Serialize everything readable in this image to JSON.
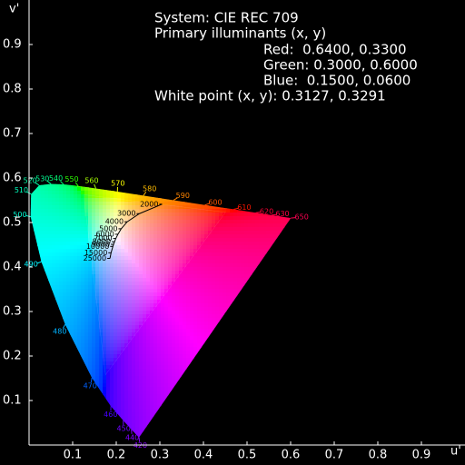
{
  "chart_data": {
    "type": "chromaticity",
    "title": "System: CIE REC 709",
    "subtitle": "Primary illuminants (x, y)",
    "primaries": [
      {
        "label": "Red:  0.6400, 0.3300",
        "x": 0.64,
        "y": 0.33
      },
      {
        "label": "Green: 0.3000, 0.6000",
        "x": 0.3,
        "y": 0.6
      },
      {
        "label": "Blue:  0.1500, 0.0600",
        "x": 0.15,
        "y": 0.06
      }
    ],
    "white_point": {
      "label": "White point (x, y): 0.3127, 0.3291",
      "x": 0.3127,
      "y": 0.3291
    },
    "xlabel": "u'",
    "ylabel": "v'",
    "xlim": [
      0,
      1.0
    ],
    "ylim": [
      0,
      1.0
    ],
    "xticks": [
      0.1,
      0.2,
      0.3,
      0.4,
      0.5,
      0.6,
      0.7,
      0.8,
      0.9
    ],
    "yticks": [
      0.1,
      0.2,
      0.3,
      0.4,
      0.5,
      0.6,
      0.7,
      0.8,
      0.9
    ],
    "spectral_locus": {
      "wavelengths": [
        420,
        440,
        450,
        460,
        470,
        480,
        490,
        500,
        510,
        520,
        530,
        540,
        550,
        560,
        570,
        580,
        590,
        600,
        610,
        620,
        630,
        650
      ],
      "x": [
        0.2522,
        0.2347,
        0.216,
        0.1877,
        0.1441,
        0.0828,
        0.0282,
        0.0035,
        0.0046,
        0.0231,
        0.0501,
        0.0792,
        0.1127,
        0.1531,
        0.2026,
        0.2623,
        0.3315,
        0.4035,
        0.4692,
        0.5203,
        0.5565,
        0.6005
      ],
      "values": [
        0.0169,
        0.035,
        0.055,
        0.0871,
        0.151,
        0.2708,
        0.4117,
        0.5131,
        0.5638,
        0.5837,
        0.5868,
        0.5856,
        0.5821,
        0.5766,
        0.5694,
        0.5604,
        0.5501,
        0.5393,
        0.5296,
        0.5219,
        0.5165,
        0.5099
      ]
    },
    "planckian_locus": {
      "temperatures": [
        2000,
        3000,
        4000,
        5000,
        6000,
        7000,
        8000,
        9000,
        10000,
        15000,
        25000
      ],
      "x": [
        0.3051,
        0.253,
        0.2251,
        0.2114,
        0.2038,
        0.1991,
        0.196,
        0.1939,
        0.1923,
        0.1881,
        0.1856
      ],
      "values": [
        0.5412,
        0.5199,
        0.5016,
        0.4859,
        0.4736,
        0.4641,
        0.4568,
        0.451,
        0.4463,
        0.4319,
        0.4194
      ]
    }
  }
}
